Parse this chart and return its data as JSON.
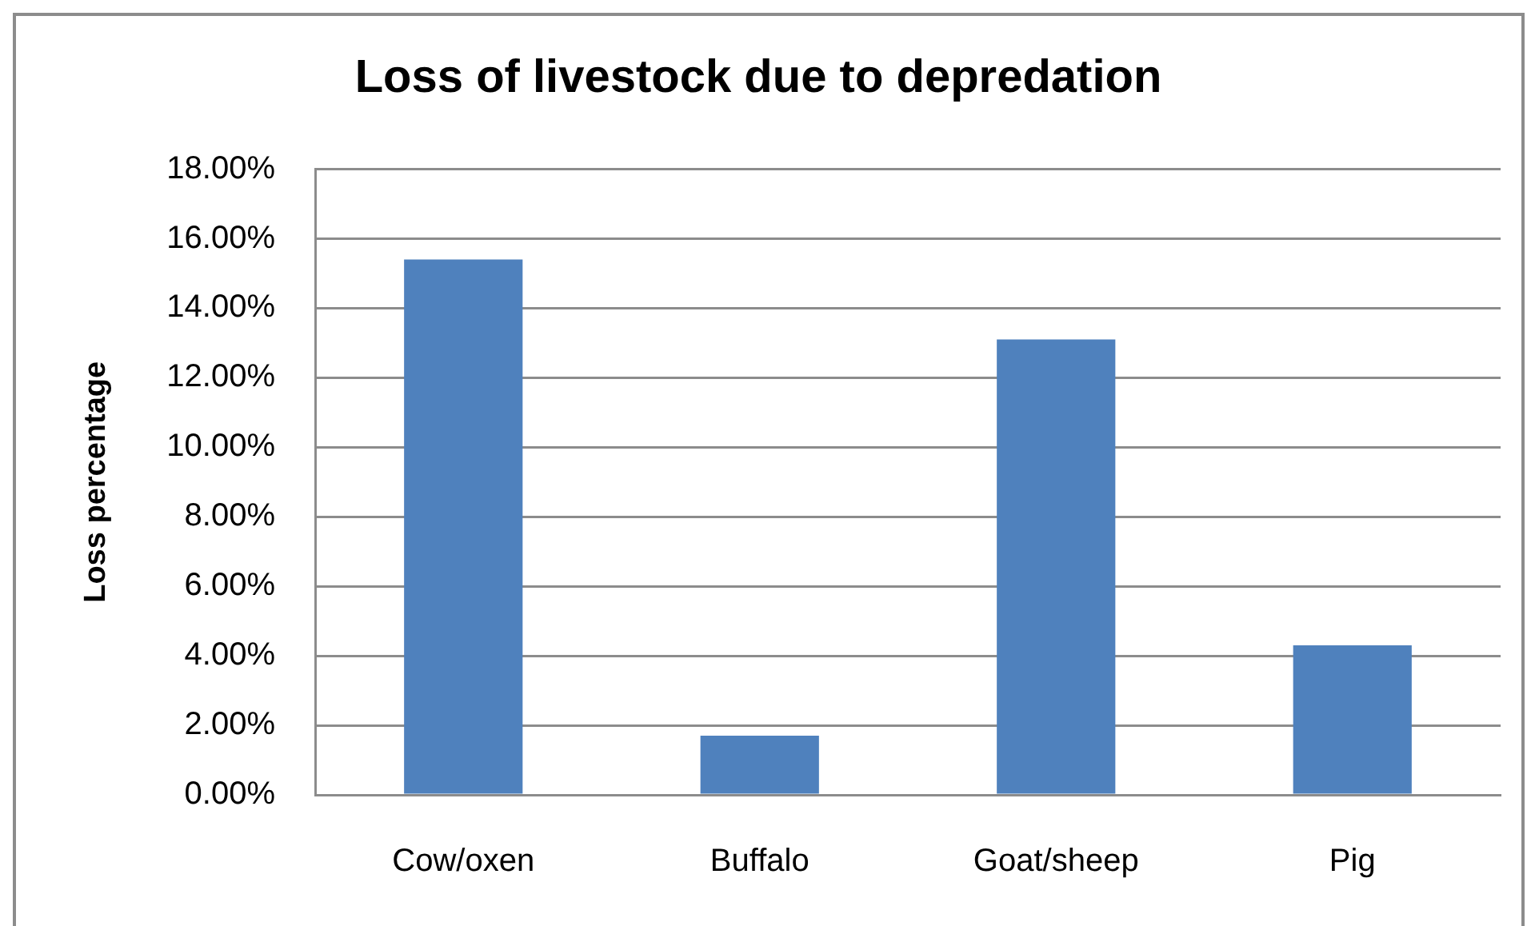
{
  "chart_data": {
    "type": "bar",
    "title": "Loss of livestock due to depredation",
    "ylabel": "Loss percentage",
    "categories": [
      "Cow/oxen",
      "Buffalo",
      "Goat/sheep",
      "Pig"
    ],
    "values": [
      15.4,
      1.7,
      13.1,
      4.3
    ],
    "color": "#4f81bd",
    "ylim": [
      0,
      18
    ],
    "yticks": [
      {
        "value": 0,
        "label": "0.00%"
      },
      {
        "value": 2,
        "label": "2.00%"
      },
      {
        "value": 4,
        "label": "4.00%"
      },
      {
        "value": 6,
        "label": "6.00%"
      },
      {
        "value": 8,
        "label": "8.00%"
      },
      {
        "value": 10,
        "label": "10.00%"
      },
      {
        "value": 12,
        "label": "12.00%"
      },
      {
        "value": 14,
        "label": "14.00%"
      },
      {
        "value": 16,
        "label": "16.00%"
      },
      {
        "value": 18,
        "label": "18.00%"
      }
    ],
    "grid": "y",
    "legend": false
  }
}
